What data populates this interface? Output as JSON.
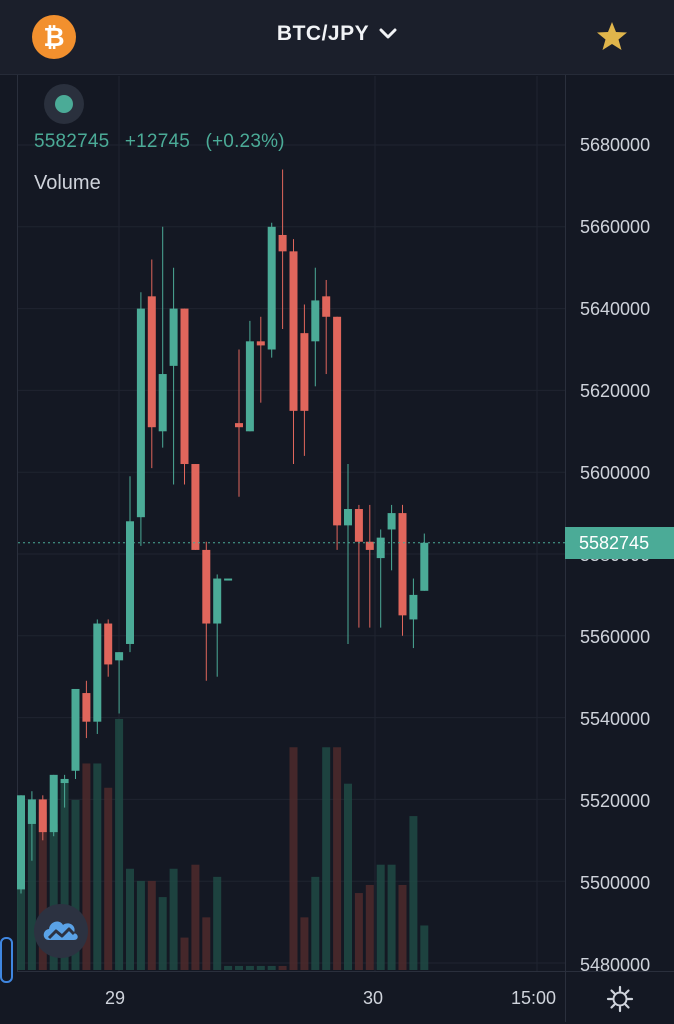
{
  "header": {
    "coin_icon": "bitcoin-icon",
    "pair": "BTC/JPY",
    "favorite_icon": "star-icon"
  },
  "legend": {
    "price": "5582745",
    "change": "+12745",
    "change_pct": "(+0.23%)",
    "volume_label": "Volume"
  },
  "colors": {
    "up": "#4bab97",
    "down": "#e0665c",
    "accent": "#f2902e"
  },
  "last_price_tag": "5582745",
  "price_axis": [
    "5680000",
    "5660000",
    "5640000",
    "5620000",
    "5600000",
    "5580000",
    "5560000",
    "5540000",
    "5520000",
    "5500000",
    "5480000"
  ],
  "time_axis": [
    "29",
    "30",
    "15:00"
  ],
  "chart_data": {
    "type": "candlestick",
    "ylim": [
      5478000,
      5691000
    ],
    "last_price": 5582745,
    "candles": [
      {
        "o": 5498000,
        "h": 5521000,
        "l": 5497000,
        "c": 5521000
      },
      {
        "o": 5514000,
        "h": 5522000,
        "l": 5505000,
        "c": 5520000
      },
      {
        "o": 5520000,
        "h": 5521000,
        "l": 5510000,
        "c": 5512000
      },
      {
        "o": 5512000,
        "h": 5526000,
        "l": 5511000,
        "c": 5526000
      },
      {
        "o": 5524000,
        "h": 5526000,
        "l": 5518000,
        "c": 5525000
      },
      {
        "o": 5527000,
        "h": 5547000,
        "l": 5525000,
        "c": 5547000
      },
      {
        "o": 5546000,
        "h": 5549000,
        "l": 5535000,
        "c": 5539000
      },
      {
        "o": 5539000,
        "h": 5564000,
        "l": 5536000,
        "c": 5563000
      },
      {
        "o": 5563000,
        "h": 5564000,
        "l": 5550000,
        "c": 5553000
      },
      {
        "o": 5554000,
        "h": 5556000,
        "l": 5541000,
        "c": 5556000
      },
      {
        "o": 5558000,
        "h": 5599000,
        "l": 5556000,
        "c": 5588000
      },
      {
        "o": 5589000,
        "h": 5644000,
        "l": 5582000,
        "c": 5640000
      },
      {
        "o": 5643000,
        "h": 5652000,
        "l": 5601000,
        "c": 5611000
      },
      {
        "o": 5610000,
        "h": 5660000,
        "l": 5606000,
        "c": 5624000
      },
      {
        "o": 5626000,
        "h": 5650000,
        "l": 5597000,
        "c": 5640000
      },
      {
        "o": 5640000,
        "h": 5640000,
        "l": 5597000,
        "c": 5602000
      },
      {
        "o": 5602000,
        "h": 5602000,
        "l": 5581000,
        "c": 5581000
      },
      {
        "o": 5581000,
        "h": 5583000,
        "l": 5549000,
        "c": 5563000
      },
      {
        "o": 5563000,
        "h": 5575000,
        "l": 5550000,
        "c": 5574000
      },
      {
        "o": 5574000,
        "h": 5574000,
        "l": 5574000,
        "c": 5574000
      },
      {
        "o": 5612000,
        "h": 5630000,
        "l": 5594000,
        "c": 5611000
      },
      {
        "o": 5610000,
        "h": 5637000,
        "l": 5610000,
        "c": 5632000
      },
      {
        "o": 5632000,
        "h": 5638000,
        "l": 5617000,
        "c": 5631000
      },
      {
        "o": 5630000,
        "h": 5661000,
        "l": 5628000,
        "c": 5660000
      },
      {
        "o": 5658000,
        "h": 5674000,
        "l": 5635000,
        "c": 5654000
      },
      {
        "o": 5654000,
        "h": 5657000,
        "l": 5602000,
        "c": 5615000
      },
      {
        "o": 5634000,
        "h": 5641000,
        "l": 5604000,
        "c": 5615000
      },
      {
        "o": 5632000,
        "h": 5650000,
        "l": 5621000,
        "c": 5642000
      },
      {
        "o": 5643000,
        "h": 5647000,
        "l": 5624000,
        "c": 5638000
      },
      {
        "o": 5638000,
        "h": 5638000,
        "l": 5581000,
        "c": 5587000
      },
      {
        "o": 5587000,
        "h": 5602000,
        "l": 5558000,
        "c": 5591000
      },
      {
        "o": 5591000,
        "h": 5592000,
        "l": 5562000,
        "c": 5583000
      },
      {
        "o": 5583000,
        "h": 5592000,
        "l": 5562000,
        "c": 5581000
      },
      {
        "o": 5579000,
        "h": 5586000,
        "l": 5562000,
        "c": 5584000
      },
      {
        "o": 5586000,
        "h": 5592000,
        "l": 5576000,
        "c": 5590000
      },
      {
        "o": 5590000,
        "h": 5592000,
        "l": 5560000,
        "c": 5565000
      },
      {
        "o": 5564000,
        "h": 5574000,
        "l": 5557000,
        "c": 5570000
      },
      {
        "o": 5571000,
        "h": 5585000,
        "l": 5571000,
        "c": 5582745
      }
    ],
    "volume": [
      0.24,
      0.39,
      0.39,
      0.36,
      0.47,
      0.42,
      0.51,
      0.51,
      0.45,
      0.62,
      0.25,
      0.22,
      0.22,
      0.18,
      0.25,
      0.08,
      0.26,
      0.13,
      0.23,
      0.01,
      0.01,
      0.01,
      0.01,
      0.01,
      0.01,
      0.55,
      0.13,
      0.23,
      0.55,
      0.55,
      0.46,
      0.19,
      0.21,
      0.26,
      0.26,
      0.21,
      0.38,
      0.11
    ],
    "volume_up": [
      true,
      true,
      false,
      true,
      true,
      true,
      false,
      true,
      false,
      true,
      true,
      true,
      false,
      true,
      true,
      false,
      false,
      false,
      true,
      true,
      true,
      true,
      true,
      true,
      false,
      false,
      false,
      true,
      true,
      false,
      true,
      false,
      false,
      true,
      true,
      false,
      true,
      true
    ]
  }
}
